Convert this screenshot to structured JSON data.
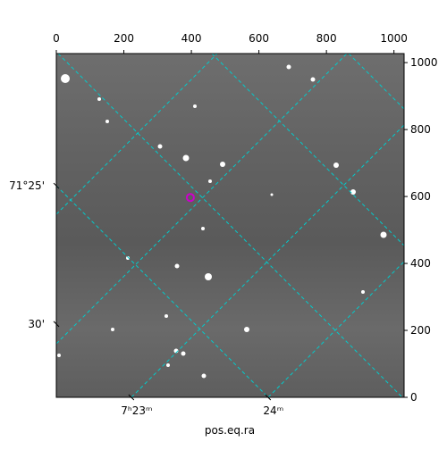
{
  "chart_data": {
    "type": "image",
    "xlabel": "pos.eq.ra",
    "xlim": [
      0,
      1030
    ],
    "ylim": [
      0,
      1027
    ],
    "xticks": [
      0,
      200,
      400,
      600,
      800,
      1000
    ],
    "yticks": [
      0,
      200,
      400,
      600,
      800,
      1000
    ],
    "ra_ticks": [
      {
        "value": 222,
        "label": "7ʰ23ᵐ"
      },
      {
        "value": 627,
        "label": "24ᵐ"
      }
    ],
    "dec_ticks": [
      {
        "value": 632,
        "label": "71°25'"
      },
      {
        "value": 219,
        "label": "30'"
      }
    ],
    "grid_color": "#00cccc",
    "marker": {
      "x": 397,
      "y": 597,
      "color": "#cc00cc"
    }
  }
}
